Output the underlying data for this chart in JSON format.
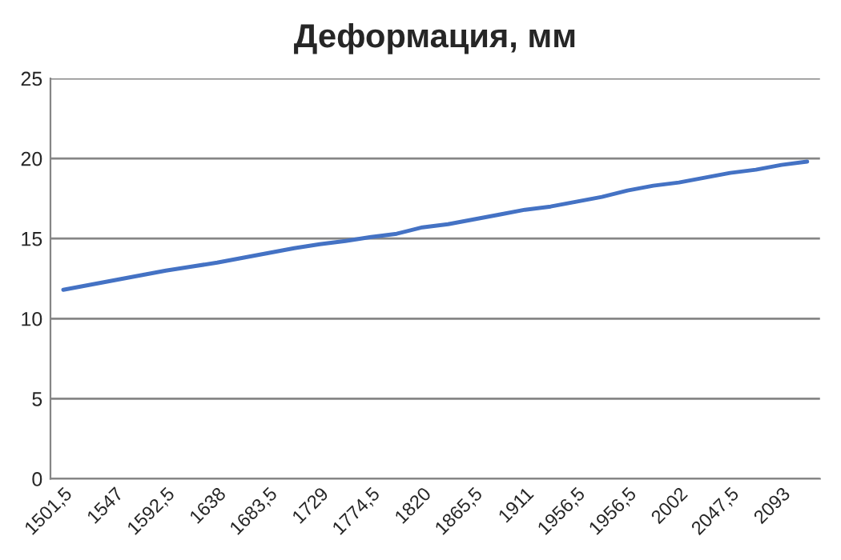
{
  "chart_data": {
    "type": "line",
    "title": "Деформация, мм",
    "categories": [
      "1501,5",
      null,
      "1547",
      null,
      "1592,5",
      null,
      "1638",
      null,
      "1683,5",
      null,
      "1729",
      null,
      "1774,5",
      null,
      "1820",
      null,
      "1865,5",
      null,
      "1911",
      null,
      "1956,5",
      null,
      "1956,5",
      null,
      "2002",
      null,
      "2047,5",
      null,
      "2093",
      null
    ],
    "series": [
      {
        "color": "#4472c4",
        "values": [
          11.8,
          12.1,
          12.4,
          12.7,
          13.0,
          13.25,
          13.5,
          13.8,
          14.1,
          14.4,
          14.65,
          14.85,
          15.1,
          15.3,
          15.7,
          15.9,
          16.2,
          16.5,
          16.8,
          17.0,
          17.3,
          17.6,
          18.0,
          18.3,
          18.5,
          18.8,
          19.1,
          19.3,
          19.6,
          19.8
        ]
      }
    ],
    "ylim": [
      0,
      25
    ],
    "yticks": [
      0,
      5,
      10,
      15,
      20,
      25
    ],
    "grid": "y",
    "legend": false,
    "marker": "none",
    "line_style": "solid"
  }
}
